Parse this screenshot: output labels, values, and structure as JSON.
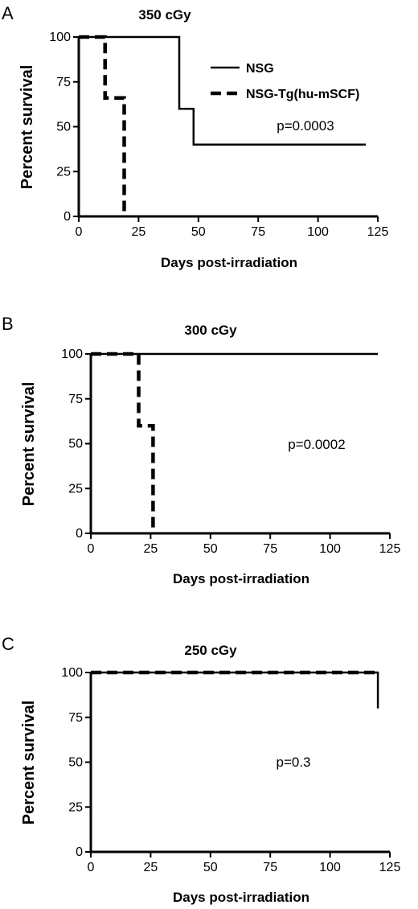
{
  "chart_data": [
    {
      "type": "line",
      "panel": "A",
      "title": "350 cGy",
      "xlabel": "Days post-irradiation",
      "ylabel": "Percent survival",
      "xlim": [
        0,
        125
      ],
      "ylim": [
        0,
        100
      ],
      "xticks": [
        0,
        25,
        50,
        75,
        100,
        125
      ],
      "yticks": [
        0,
        25,
        50,
        75,
        100
      ],
      "annotation": "p=0.0003",
      "legend": {
        "position": "top-right",
        "entries": [
          {
            "label": "NSG",
            "style": "solid"
          },
          {
            "label": "NSG-Tg(hu-mSCF)",
            "style": "dashed"
          }
        ]
      },
      "series": [
        {
          "name": "NSG",
          "style": "solid",
          "x": [
            0,
            42,
            42,
            48,
            48,
            120
          ],
          "y": [
            100,
            100,
            60,
            60,
            40,
            40
          ]
        },
        {
          "name": "NSG-Tg(hu-mSCF)",
          "style": "dashed",
          "x": [
            0,
            11,
            11,
            19,
            19
          ],
          "y": [
            100,
            100,
            66,
            66,
            0
          ]
        }
      ]
    },
    {
      "type": "line",
      "panel": "B",
      "title": "300 cGy",
      "xlabel": "Days post-irradiation",
      "ylabel": "Percent survival",
      "xlim": [
        0,
        125
      ],
      "ylim": [
        0,
        100
      ],
      "xticks": [
        0,
        25,
        50,
        75,
        100,
        125
      ],
      "yticks": [
        0,
        25,
        50,
        75,
        100
      ],
      "annotation": "p=0.0002",
      "series": [
        {
          "name": "NSG",
          "style": "solid",
          "x": [
            0,
            120
          ],
          "y": [
            100,
            100
          ]
        },
        {
          "name": "NSG-Tg(hu-mSCF)",
          "style": "dashed",
          "x": [
            0,
            20,
            20,
            26,
            26
          ],
          "y": [
            100,
            100,
            60,
            60,
            0
          ]
        }
      ]
    },
    {
      "type": "line",
      "panel": "C",
      "title": "250 cGy",
      "xlabel": "Days post-irradiation",
      "ylabel": "Percent survival",
      "xlim": [
        0,
        125
      ],
      "ylim": [
        0,
        100
      ],
      "xticks": [
        0,
        25,
        50,
        75,
        100,
        125
      ],
      "yticks": [
        0,
        25,
        50,
        75,
        100
      ],
      "annotation": "p=0.3",
      "series": [
        {
          "name": "NSG",
          "style": "solid",
          "x": [
            0,
            120,
            120
          ],
          "y": [
            100,
            100,
            80
          ]
        },
        {
          "name": "NSG-Tg(hu-mSCF)",
          "style": "dashed",
          "x": [
            0,
            120
          ],
          "y": [
            100,
            100
          ]
        }
      ]
    }
  ]
}
